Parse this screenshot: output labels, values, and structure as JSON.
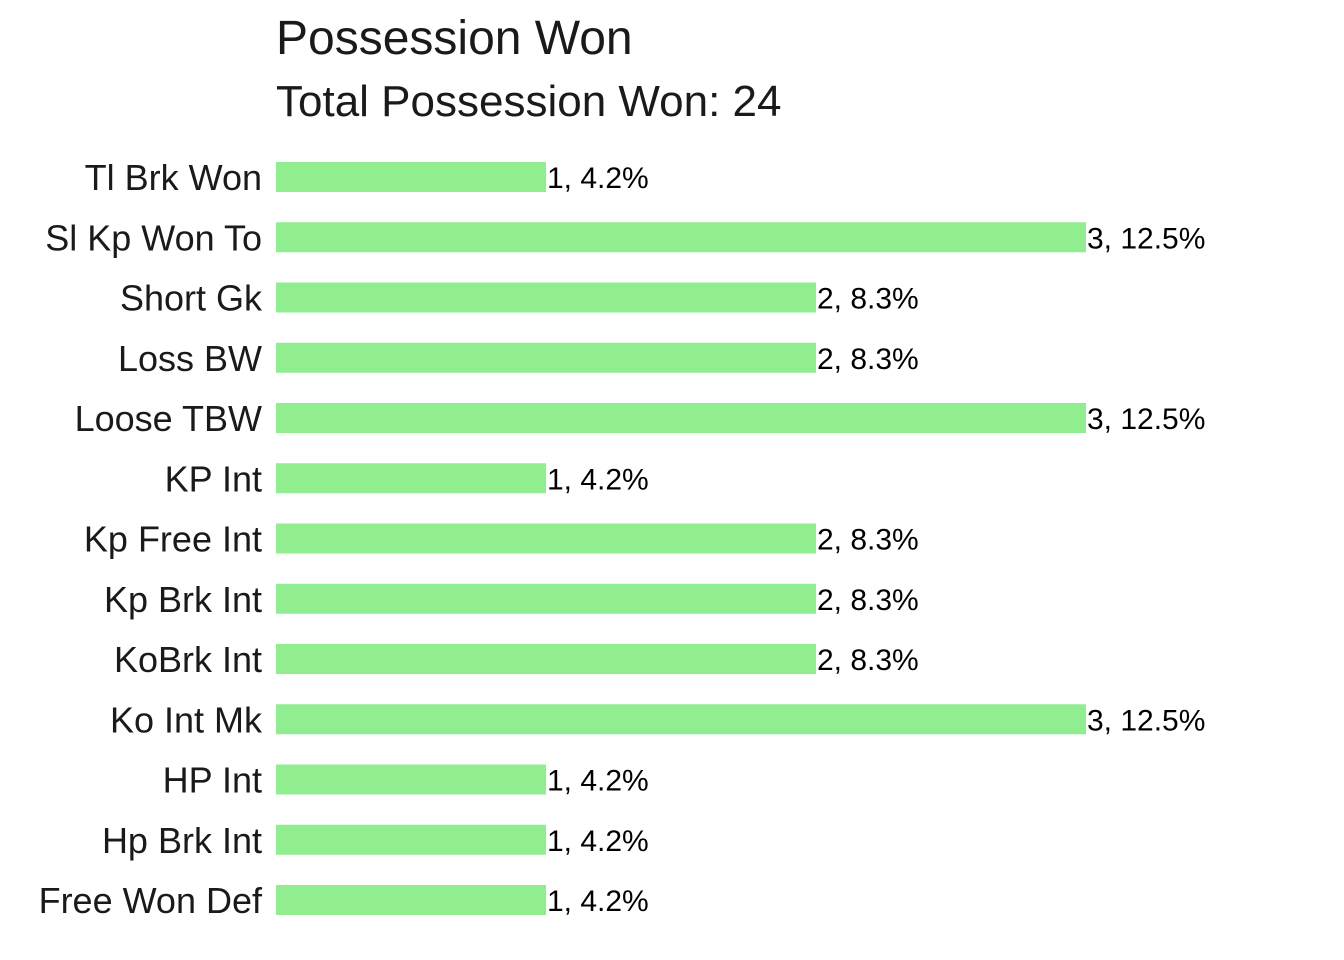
{
  "chart_data": {
    "type": "bar",
    "orientation": "horizontal",
    "title": "Possession Won",
    "subtitle": "Total Possession Won: 24",
    "xlabel": "",
    "ylabel": "",
    "xlim": [
      0,
      3.5
    ],
    "grid": false,
    "bar_color": "#90ee90",
    "categories": [
      "Tl Brk Won",
      "Sl Kp Won To",
      "Short Gk",
      "Loss BW",
      "Loose TBW",
      "KP Int",
      "Kp Free Int",
      "Kp Brk Int",
      "KoBrk Int",
      "Ko Int Mk",
      "HP Int",
      "Hp Brk Int",
      "Free Won Def"
    ],
    "values": [
      1,
      3,
      2,
      2,
      3,
      1,
      2,
      2,
      2,
      3,
      1,
      1,
      1
    ],
    "data_labels": [
      "1, 4.2%",
      "3, 12.5%",
      "2, 8.3%",
      "2, 8.3%",
      "3, 12.5%",
      "1, 4.2%",
      "2, 8.3%",
      "2, 8.3%",
      "2, 8.3%",
      "3, 12.5%",
      "1, 4.2%",
      "1, 4.2%",
      "1, 4.2%"
    ]
  }
}
